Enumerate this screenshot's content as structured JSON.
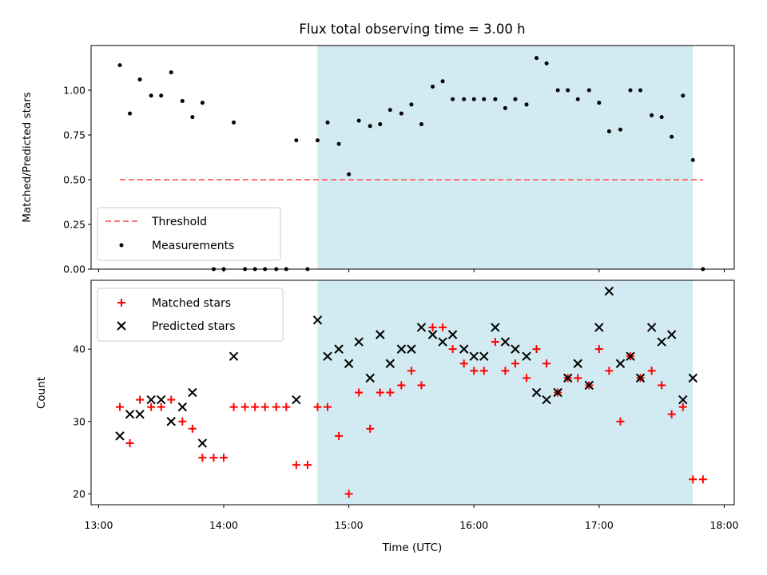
{
  "chart_data": [
    {
      "type": "scatter",
      "title": "Flux total observing time = 3.00 h",
      "xlabel": "",
      "ylabel": "Matched/Predicted stars",
      "ylim": [
        0.0,
        1.25
      ],
      "yticks": [
        "0.00",
        "0.25",
        "0.50",
        "0.75",
        "1.00"
      ],
      "xlim_hours": [
        12.94,
        18.08
      ],
      "shaded_interval_hours": [
        14.75,
        17.75
      ],
      "shaded_color": "#add8e6",
      "threshold": {
        "name": "Threshold",
        "x_hours": [
          13.17,
          17.83
        ],
        "y": 0.5,
        "color": "#ff7070"
      },
      "series": [
        {
          "name": "Measurements",
          "color": "#000000",
          "points": [
            [
              13.17,
              1.14
            ],
            [
              13.25,
              0.87
            ],
            [
              13.33,
              1.06
            ],
            [
              13.42,
              0.97
            ],
            [
              13.5,
              0.97
            ],
            [
              13.58,
              1.1
            ],
            [
              13.67,
              0.94
            ],
            [
              13.75,
              0.85
            ],
            [
              13.83,
              0.93
            ],
            [
              13.92,
              0.0
            ],
            [
              14.0,
              0.0
            ],
            [
              14.08,
              0.82
            ],
            [
              14.17,
              0.0
            ],
            [
              14.25,
              0.0
            ],
            [
              14.33,
              0.0
            ],
            [
              14.42,
              0.0
            ],
            [
              14.5,
              0.0
            ],
            [
              14.58,
              0.72
            ],
            [
              14.67,
              0.0
            ],
            [
              14.75,
              0.72
            ],
            [
              14.83,
              0.82
            ],
            [
              14.92,
              0.7
            ],
            [
              15.0,
              0.53
            ],
            [
              15.08,
              0.83
            ],
            [
              15.17,
              0.8
            ],
            [
              15.25,
              0.81
            ],
            [
              15.33,
              0.89
            ],
            [
              15.42,
              0.87
            ],
            [
              15.5,
              0.92
            ],
            [
              15.58,
              0.81
            ],
            [
              15.67,
              1.02
            ],
            [
              15.75,
              1.05
            ],
            [
              15.83,
              0.95
            ],
            [
              15.92,
              0.95
            ],
            [
              16.0,
              0.95
            ],
            [
              16.08,
              0.95
            ],
            [
              16.17,
              0.95
            ],
            [
              16.25,
              0.9
            ],
            [
              16.33,
              0.95
            ],
            [
              16.42,
              0.92
            ],
            [
              16.5,
              1.18
            ],
            [
              16.58,
              1.15
            ],
            [
              16.67,
              1.0
            ],
            [
              16.75,
              1.0
            ],
            [
              16.83,
              0.95
            ],
            [
              16.92,
              1.0
            ],
            [
              17.0,
              0.93
            ],
            [
              17.08,
              0.77
            ],
            [
              17.17,
              0.78
            ],
            [
              17.25,
              1.0
            ],
            [
              17.33,
              1.0
            ],
            [
              17.42,
              0.86
            ],
            [
              17.5,
              0.85
            ],
            [
              17.58,
              0.74
            ],
            [
              17.67,
              0.97
            ],
            [
              17.75,
              0.61
            ],
            [
              17.83,
              0.0
            ]
          ]
        }
      ],
      "legend": {
        "placement": "lower-left",
        "entries": [
          "Threshold",
          "Measurements"
        ]
      }
    },
    {
      "type": "scatter",
      "title": "",
      "xlabel": "Time (UTC)",
      "ylabel": "Count",
      "ylim": [
        18.5,
        49.5
      ],
      "yticks": [
        "20",
        "30",
        "40"
      ],
      "xticks": [
        "13:00",
        "14:00",
        "15:00",
        "16:00",
        "17:00",
        "18:00"
      ],
      "xlim_hours": [
        12.94,
        18.08
      ],
      "shaded_interval_hours": [
        14.75,
        17.75
      ],
      "shaded_color": "#add8e6",
      "series": [
        {
          "name": "Matched stars",
          "color": "#ff0000",
          "marker": "plus",
          "points": [
            [
              13.17,
              32
            ],
            [
              13.25,
              27
            ],
            [
              13.33,
              33
            ],
            [
              13.42,
              32
            ],
            [
              13.5,
              32
            ],
            [
              13.58,
              33
            ],
            [
              13.67,
              30
            ],
            [
              13.75,
              29
            ],
            [
              13.83,
              25
            ],
            [
              13.92,
              25
            ],
            [
              14.0,
              25
            ],
            [
              14.08,
              32
            ],
            [
              14.17,
              32
            ],
            [
              14.25,
              32
            ],
            [
              14.33,
              32
            ],
            [
              14.42,
              32
            ],
            [
              14.5,
              32
            ],
            [
              14.58,
              24
            ],
            [
              14.67,
              24
            ],
            [
              14.75,
              32
            ],
            [
              14.83,
              32
            ],
            [
              14.92,
              28
            ],
            [
              15.0,
              20
            ],
            [
              15.08,
              34
            ],
            [
              15.17,
              29
            ],
            [
              15.25,
              34
            ],
            [
              15.33,
              34
            ],
            [
              15.42,
              35
            ],
            [
              15.5,
              37
            ],
            [
              15.58,
              35
            ],
            [
              15.67,
              43
            ],
            [
              15.75,
              43
            ],
            [
              15.83,
              40
            ],
            [
              15.92,
              38
            ],
            [
              16.0,
              37
            ],
            [
              16.08,
              37
            ],
            [
              16.17,
              41
            ],
            [
              16.25,
              37
            ],
            [
              16.33,
              38
            ],
            [
              16.42,
              36
            ],
            [
              16.5,
              40
            ],
            [
              16.58,
              38
            ],
            [
              16.67,
              34
            ],
            [
              16.75,
              36
            ],
            [
              16.83,
              36
            ],
            [
              16.92,
              35
            ],
            [
              17.0,
              40
            ],
            [
              17.08,
              37
            ],
            [
              17.17,
              30
            ],
            [
              17.25,
              39
            ],
            [
              17.33,
              36
            ],
            [
              17.42,
              37
            ],
            [
              17.5,
              35
            ],
            [
              17.58,
              31
            ],
            [
              17.67,
              32
            ],
            [
              17.75,
              22
            ],
            [
              17.83,
              22
            ]
          ]
        },
        {
          "name": "Predicted stars",
          "color": "#000000",
          "marker": "x",
          "points": [
            [
              13.17,
              28
            ],
            [
              13.25,
              31
            ],
            [
              13.33,
              31
            ],
            [
              13.42,
              33
            ],
            [
              13.5,
              33
            ],
            [
              13.58,
              30
            ],
            [
              13.67,
              32
            ],
            [
              13.75,
              34
            ],
            [
              13.83,
              27
            ],
            [
              14.08,
              39
            ],
            [
              14.58,
              33
            ],
            [
              14.75,
              44
            ],
            [
              14.83,
              39
            ],
            [
              14.92,
              40
            ],
            [
              15.0,
              38
            ],
            [
              15.08,
              41
            ],
            [
              15.17,
              36
            ],
            [
              15.25,
              42
            ],
            [
              15.33,
              38
            ],
            [
              15.42,
              40
            ],
            [
              15.5,
              40
            ],
            [
              15.58,
              43
            ],
            [
              15.67,
              42
            ],
            [
              15.75,
              41
            ],
            [
              15.83,
              42
            ],
            [
              15.92,
              40
            ],
            [
              16.0,
              39
            ],
            [
              16.08,
              39
            ],
            [
              16.17,
              43
            ],
            [
              16.25,
              41
            ],
            [
              16.33,
              40
            ],
            [
              16.42,
              39
            ],
            [
              16.5,
              34
            ],
            [
              16.58,
              33
            ],
            [
              16.67,
              34
            ],
            [
              16.75,
              36
            ],
            [
              16.83,
              38
            ],
            [
              16.92,
              35
            ],
            [
              17.0,
              43
            ],
            [
              17.08,
              48
            ],
            [
              17.17,
              38
            ],
            [
              17.25,
              39
            ],
            [
              17.33,
              36
            ],
            [
              17.42,
              43
            ],
            [
              17.5,
              41
            ],
            [
              17.58,
              42
            ],
            [
              17.67,
              33
            ],
            [
              17.75,
              36
            ]
          ]
        }
      ],
      "legend": {
        "placement": "top-left",
        "entries": [
          "Matched stars",
          "Predicted stars"
        ]
      }
    }
  ]
}
